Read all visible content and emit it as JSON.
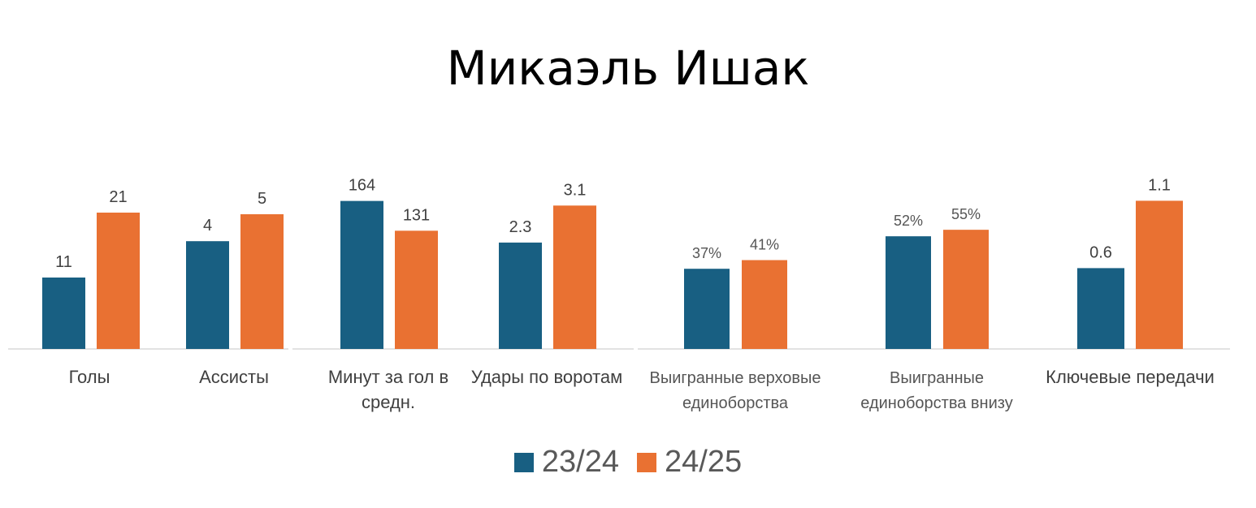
{
  "title": "Микаэль Ишак",
  "chart_data": {
    "type": "bar",
    "title": "Микаэль Ишак",
    "categories": [
      [
        "Голы"
      ],
      [
        "Ассисты"
      ],
      [
        "Минут за гол в",
        "средн."
      ],
      [
        "Удары по воротам"
      ],
      [
        "Выигранные верховые",
        "единоборства"
      ],
      [
        "Выигранные",
        "единоборства внизу"
      ],
      [
        "Ключевые передачи"
      ]
    ],
    "series": [
      {
        "name": "23/24",
        "color": "#185F82",
        "values": [
          11,
          4,
          164,
          2.3,
          37,
          52,
          0.6
        ],
        "labels": [
          "11",
          "4",
          "164",
          "2.3",
          "37%",
          "52%",
          "0.6"
        ]
      },
      {
        "name": "24/25",
        "color": "#E97132",
        "values": [
          21,
          5,
          131,
          3.1,
          41,
          55,
          1.1
        ],
        "labels": [
          "21",
          "5",
          "131",
          "3.1",
          "41%",
          "55%",
          "1.1"
        ]
      }
    ],
    "legend": "bottom",
    "grid": false,
    "note_scale": "each category panel is scaled independently"
  },
  "legend": {
    "items": [
      {
        "label": "23/24",
        "color": "#185F82"
      },
      {
        "label": "24/25",
        "color": "#E97132"
      }
    ]
  }
}
